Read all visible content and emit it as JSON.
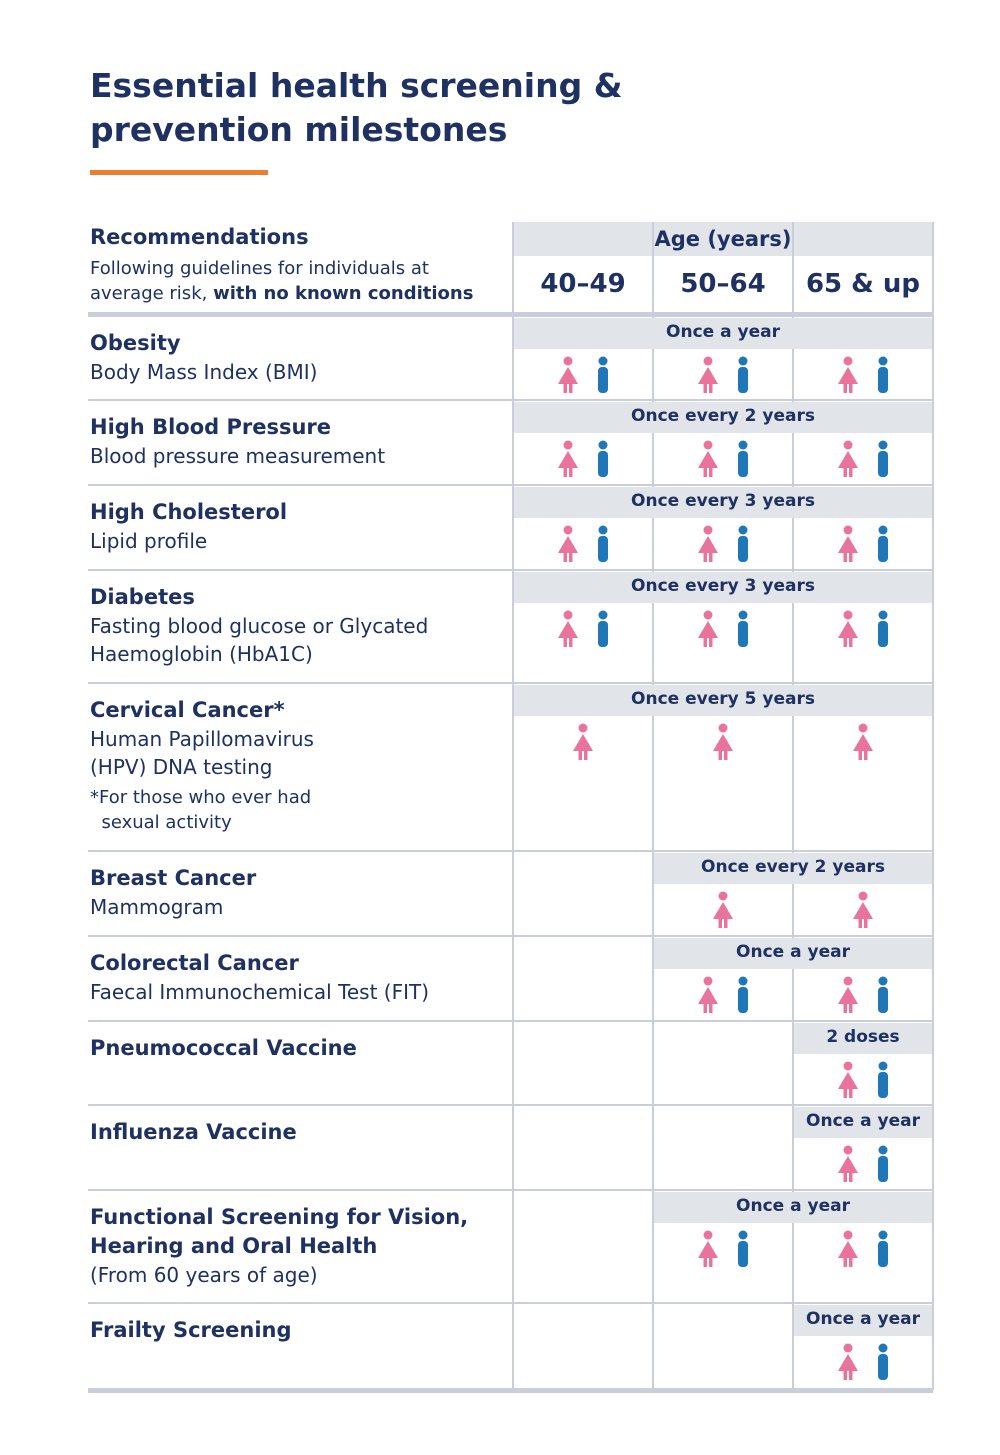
{
  "title_line1": "Essential health screening &",
  "title_line2": "prevention milestones",
  "colors": {
    "navy": "#1e3161",
    "accent": "#ef7d2f",
    "female": "#e9739b",
    "male": "#1f77b8",
    "band": "#e1e4e9"
  },
  "header": {
    "recommendations": "Recommendations",
    "guideline": "Following guidelines for individuals at",
    "guideline2_plain": "average risk, ",
    "guideline2_bold": "with no known conditions",
    "age_title": "Age (years)",
    "age_groups": [
      "40–49",
      "50–64",
      "65 & up"
    ]
  },
  "rows": [
    {
      "name": "Obesity",
      "subs": [
        "Body Mass Index (BMI)"
      ],
      "note": "",
      "frequency": "Once a year",
      "start_col": 0,
      "groups": [
        [
          "female-icon",
          "male-icon"
        ],
        [
          "female-icon",
          "male-icon"
        ],
        [
          "female-icon",
          "male-icon"
        ]
      ]
    },
    {
      "name": "High Blood Pressure",
      "subs": [
        "Blood pressure measurement"
      ],
      "note": "",
      "frequency": "Once every 2 years",
      "start_col": 0,
      "groups": [
        [
          "female-icon",
          "male-icon"
        ],
        [
          "female-icon",
          "male-icon"
        ],
        [
          "female-icon",
          "male-icon"
        ]
      ]
    },
    {
      "name": "High Cholesterol",
      "subs": [
        "Lipid profile"
      ],
      "note": "",
      "frequency": "Once every 3 years",
      "start_col": 0,
      "groups": [
        [
          "female-icon",
          "male-icon"
        ],
        [
          "female-icon",
          "male-icon"
        ],
        [
          "female-icon",
          "male-icon"
        ]
      ]
    },
    {
      "name": "Diabetes",
      "subs": [
        "Fasting blood glucose or Glycated",
        "Haemoglobin (HbA1C)"
      ],
      "note": "",
      "frequency": "Once every 3 years",
      "start_col": 0,
      "groups": [
        [
          "female-icon",
          "male-icon"
        ],
        [
          "female-icon",
          "male-icon"
        ],
        [
          "female-icon",
          "male-icon"
        ]
      ]
    },
    {
      "name": "Cervical Cancer*",
      "subs": [
        "Human Papillomavirus",
        "(HPV) DNA testing"
      ],
      "note": "*For those who ever had\n  sexual activity",
      "frequency": "Once every 5 years",
      "start_col": 0,
      "groups": [
        [
          "female-icon"
        ],
        [
          "female-icon"
        ],
        [
          "female-icon"
        ]
      ]
    },
    {
      "name": "Breast Cancer",
      "subs": [
        "Mammogram"
      ],
      "note": "",
      "frequency": "Once every 2 years",
      "start_col": 1,
      "groups": [
        [],
        [
          "female-icon"
        ],
        [
          "female-icon"
        ]
      ]
    },
    {
      "name": "Colorectal Cancer",
      "subs": [
        "Faecal Immunochemical Test (FIT)"
      ],
      "note": "",
      "frequency": "Once a year",
      "start_col": 1,
      "groups": [
        [],
        [
          "female-icon",
          "male-icon"
        ],
        [
          "female-icon",
          "male-icon"
        ]
      ]
    },
    {
      "name": "Pneumococcal Vaccine",
      "subs": [],
      "note": "",
      "frequency": "2 doses",
      "start_col": 2,
      "groups": [
        [],
        [],
        [
          "female-icon",
          "male-icon"
        ]
      ]
    },
    {
      "name": "Influenza Vaccine",
      "subs": [],
      "note": "",
      "frequency": "Once a year",
      "start_col": 2,
      "groups": [
        [],
        [],
        [
          "female-icon",
          "male-icon"
        ]
      ]
    },
    {
      "name": "Functional Screening for Vision,",
      "subs": [],
      "name2": "Hearing and Oral Health",
      "subs_after": [
        "(From 60 years of age)"
      ],
      "note": "",
      "frequency": "Once a year",
      "start_col": 1,
      "groups": [
        [],
        [
          "female-icon",
          "male-icon"
        ],
        [
          "female-icon",
          "male-icon"
        ]
      ]
    },
    {
      "name": "Frailty Screening",
      "subs": [],
      "note": "",
      "frequency": "Once a year",
      "start_col": 2,
      "groups": [
        [],
        [],
        [
          "female-icon",
          "male-icon"
        ]
      ]
    }
  ]
}
